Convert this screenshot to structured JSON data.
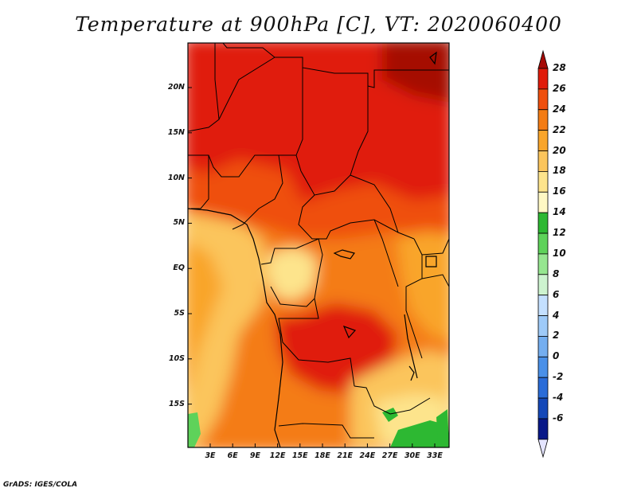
{
  "title": "Temperature at 900hPa [C], VT: 2020060400",
  "footer": "GrADS: IGES/COLA",
  "map": {
    "lat_ticks": [
      "20N",
      "15N",
      "10N",
      "5N",
      "EQ",
      "5S",
      "10S",
      "15S"
    ],
    "lon_ticks": [
      "3E",
      "6E",
      "9E",
      "12E",
      "15E",
      "18E",
      "21E",
      "24E",
      "27E",
      "30E",
      "33E"
    ]
  },
  "colorbar": {
    "levels": [
      "28",
      "26",
      "24",
      "22",
      "20",
      "18",
      "16",
      "14",
      "12",
      "10",
      "8",
      "6",
      "4",
      "2",
      "0",
      "-2",
      "-4",
      "-6"
    ],
    "colors": [
      "#a50a06",
      "#e01b0a",
      "#ef4f0d",
      "#f47c14",
      "#f9a52a",
      "#fbc55c",
      "#fde48c",
      "#fff8c4",
      "#2db832",
      "#5ed25a",
      "#96e690",
      "#cdf3cf",
      "#c4e0ff",
      "#9ecaf8",
      "#74aef0",
      "#4a90e8",
      "#2a6cd8",
      "#1448b8",
      "#081888",
      "#e4e4ff"
    ]
  }
}
